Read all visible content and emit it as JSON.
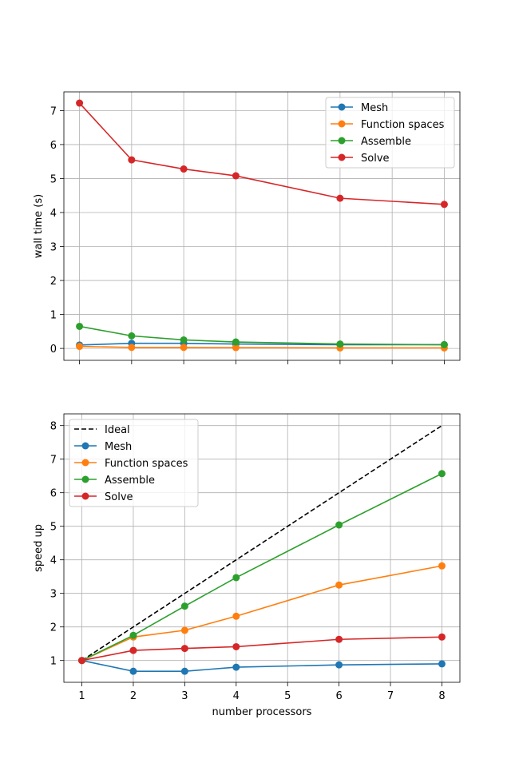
{
  "chart_data": [
    {
      "type": "line",
      "title": "",
      "xlabel": "",
      "ylabel": "wall time (s)",
      "x": [
        1,
        2,
        3,
        4,
        6,
        8
      ],
      "xlim": [
        0.7,
        8.3
      ],
      "ylim": [
        -0.35,
        7.55
      ],
      "xticks": [
        1,
        2,
        3,
        4,
        5,
        6,
        7,
        8
      ],
      "xtick_labels_visible": false,
      "yticks": [
        0,
        1,
        2,
        3,
        4,
        5,
        6,
        7
      ],
      "grid": true,
      "legend_position": "upper right",
      "series": [
        {
          "name": "Mesh",
          "color": "#1f77b4",
          "values": [
            0.1,
            0.15,
            0.15,
            0.13,
            0.11,
            0.11
          ],
          "marker": "circle"
        },
        {
          "name": "Function spaces",
          "color": "#ff7f0e",
          "values": [
            0.06,
            0.03,
            0.03,
            0.025,
            0.015,
            0.015
          ],
          "marker": "circle"
        },
        {
          "name": "Assemble",
          "color": "#2ca02c",
          "values": [
            0.65,
            0.37,
            0.25,
            0.19,
            0.13,
            0.11
          ],
          "marker": "circle"
        },
        {
          "name": "Solve",
          "color": "#d62728",
          "values": [
            7.22,
            5.55,
            5.28,
            5.08,
            4.42,
            4.24
          ],
          "marker": "circle"
        }
      ]
    },
    {
      "type": "line",
      "title": "",
      "xlabel": "number processors",
      "ylabel": "speed up",
      "x": [
        1,
        2,
        3,
        4,
        6,
        8
      ],
      "xlim": [
        0.65,
        8.35
      ],
      "ylim": [
        0.35,
        8.35
      ],
      "xticks": [
        1,
        2,
        3,
        4,
        5,
        6,
        7,
        8
      ],
      "yticks": [
        1,
        2,
        3,
        4,
        5,
        6,
        7,
        8
      ],
      "grid": true,
      "legend_position": "upper left",
      "series": [
        {
          "name": "Ideal",
          "color": "#000000",
          "dashed": true,
          "marker": "none",
          "x": [
            1,
            8
          ],
          "values": [
            1,
            8
          ]
        },
        {
          "name": "Mesh",
          "color": "#1f77b4",
          "values": [
            1.0,
            0.68,
            0.68,
            0.8,
            0.87,
            0.9
          ],
          "marker": "circle"
        },
        {
          "name": "Function spaces",
          "color": "#ff7f0e",
          "values": [
            1.0,
            1.7,
            1.9,
            2.32,
            3.25,
            3.82
          ],
          "marker": "circle"
        },
        {
          "name": "Assemble",
          "color": "#2ca02c",
          "values": [
            1.0,
            1.75,
            2.62,
            3.47,
            5.04,
            6.57
          ],
          "marker": "circle"
        },
        {
          "name": "Solve",
          "color": "#d62728",
          "values": [
            1.0,
            1.3,
            1.36,
            1.41,
            1.63,
            1.7
          ],
          "marker": "circle"
        }
      ]
    }
  ]
}
